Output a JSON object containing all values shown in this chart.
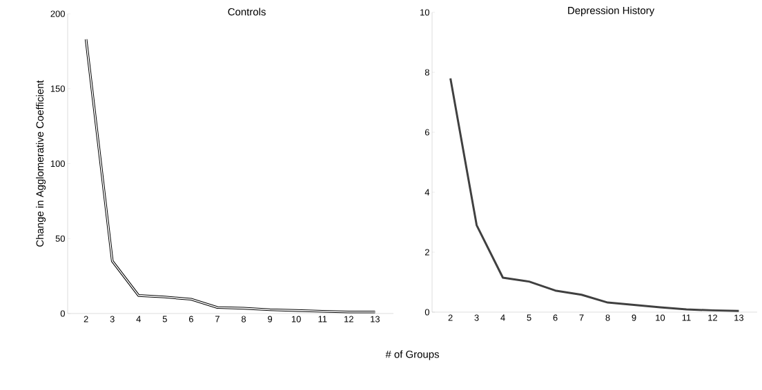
{
  "chart_data": [
    {
      "type": "line",
      "title": "Controls",
      "xlabel": "# of Groups",
      "ylabel": "Change in Agglomerative Coefficient",
      "categories": [
        "2",
        "3",
        "4",
        "5",
        "6",
        "7",
        "8",
        "9",
        "10",
        "11",
        "12",
        "13"
      ],
      "series": [
        {
          "color": "#000000",
          "values": [
            183,
            35,
            12,
            11,
            9.5,
            4,
            3.5,
            2.5,
            2,
            1.5,
            1,
            1
          ]
        }
      ],
      "ylim": [
        0,
        200
      ],
      "yticks": [
        0,
        50,
        100,
        150,
        200
      ],
      "grid": false,
      "marker": "none",
      "line_style": "solid"
    },
    {
      "type": "line",
      "title": "Depression History",
      "categories": [
        "2",
        "3",
        "4",
        "5",
        "6",
        "7",
        "8",
        "9",
        "10",
        "11",
        "12",
        "13"
      ],
      "series": [
        {
          "color": "#404040",
          "values": [
            7.8,
            2.9,
            1.15,
            1.02,
            0.72,
            0.58,
            0.32,
            0.24,
            0.16,
            0.09,
            0.06,
            0.04
          ]
        }
      ],
      "ylim": [
        0,
        10
      ],
      "yticks": [
        0,
        2,
        4,
        6,
        8,
        10
      ],
      "grid": false,
      "marker": "none",
      "line_style": "solid"
    }
  ]
}
